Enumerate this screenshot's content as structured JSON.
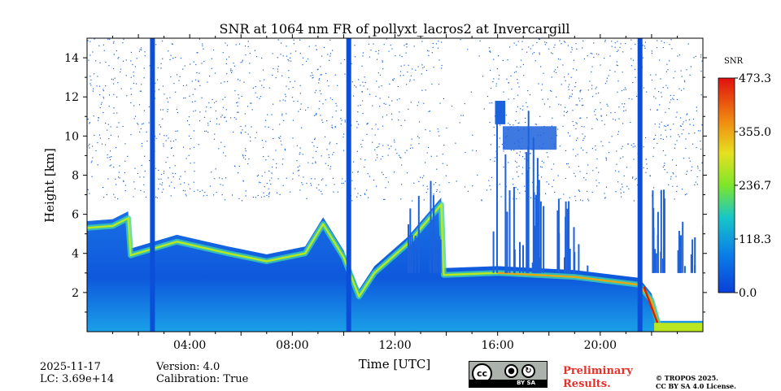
{
  "chart_data": {
    "type": "heatmap",
    "title": "SNR at 1064 nm FR of pollyxt_lacros2 at Invercargill",
    "xlabel": "Time [UTC]",
    "ylabel": "Height [km]",
    "xlim_hours": [
      0,
      24
    ],
    "ylim_km": [
      0,
      15
    ],
    "x_ticks": [
      {
        "value": 4,
        "label": "04:00"
      },
      {
        "value": 8,
        "label": "08:00"
      },
      {
        "value": 12,
        "label": "12:00"
      },
      {
        "value": 16,
        "label": "16:00"
      },
      {
        "value": 20,
        "label": "20:00"
      }
    ],
    "y_ticks": [
      {
        "value": 2,
        "label": "2"
      },
      {
        "value": 4,
        "label": "4"
      },
      {
        "value": 6,
        "label": "6"
      },
      {
        "value": 8,
        "label": "8"
      },
      {
        "value": 10,
        "label": "10"
      },
      {
        "value": 12,
        "label": "12"
      },
      {
        "value": 14,
        "label": "14"
      }
    ],
    "colorbar": {
      "label": "SNR",
      "range": [
        0,
        473.3
      ],
      "ticks": [
        "0.0",
        "118.3",
        "236.7",
        "355.0",
        "473.3"
      ],
      "colormap": "jet"
    },
    "vertical_gaps_hours": [
      2.55,
      10.2,
      21.55
    ],
    "cloud_layer_points": [
      {
        "t": 0.0,
        "h": 5.3
      },
      {
        "t": 1.0,
        "h": 5.4
      },
      {
        "t": 1.6,
        "h": 5.8
      },
      {
        "t": 1.7,
        "h": 3.9
      },
      {
        "t": 3.5,
        "h": 4.6
      },
      {
        "t": 5.5,
        "h": 4.0
      },
      {
        "t": 7.0,
        "h": 3.6
      },
      {
        "t": 8.5,
        "h": 4.0
      },
      {
        "t": 9.2,
        "h": 5.5
      },
      {
        "t": 10.0,
        "h": 3.8
      },
      {
        "t": 10.6,
        "h": 1.8
      },
      {
        "t": 11.2,
        "h": 3.0
      },
      {
        "t": 12.5,
        "h": 4.5
      },
      {
        "t": 13.8,
        "h": 6.5
      },
      {
        "t": 13.9,
        "h": 2.9
      },
      {
        "t": 16.0,
        "h": 3.0
      },
      {
        "t": 19.0,
        "h": 2.8
      },
      {
        "t": 21.5,
        "h": 2.4
      },
      {
        "t": 22.0,
        "h": 1.6
      },
      {
        "t": 22.3,
        "h": 0.2
      },
      {
        "t": 24.0,
        "h": 0.2
      }
    ]
  },
  "footer": {
    "date": "2025-11-17",
    "lc": "LC: 3.69e+14",
    "version": "Version: 4.0",
    "calibration": "Calibration: True",
    "preliminary_line1": "Preliminary",
    "preliminary_line2": "Results.",
    "copyright_line1": "© TROPOS 2025.",
    "copyright_line2": "CC BY SA 4.0 License.",
    "license_badge": "BY    SA"
  },
  "colors": {
    "background_blue": "#0b4fd8",
    "low": "#1060e0",
    "high": "#d62000"
  }
}
